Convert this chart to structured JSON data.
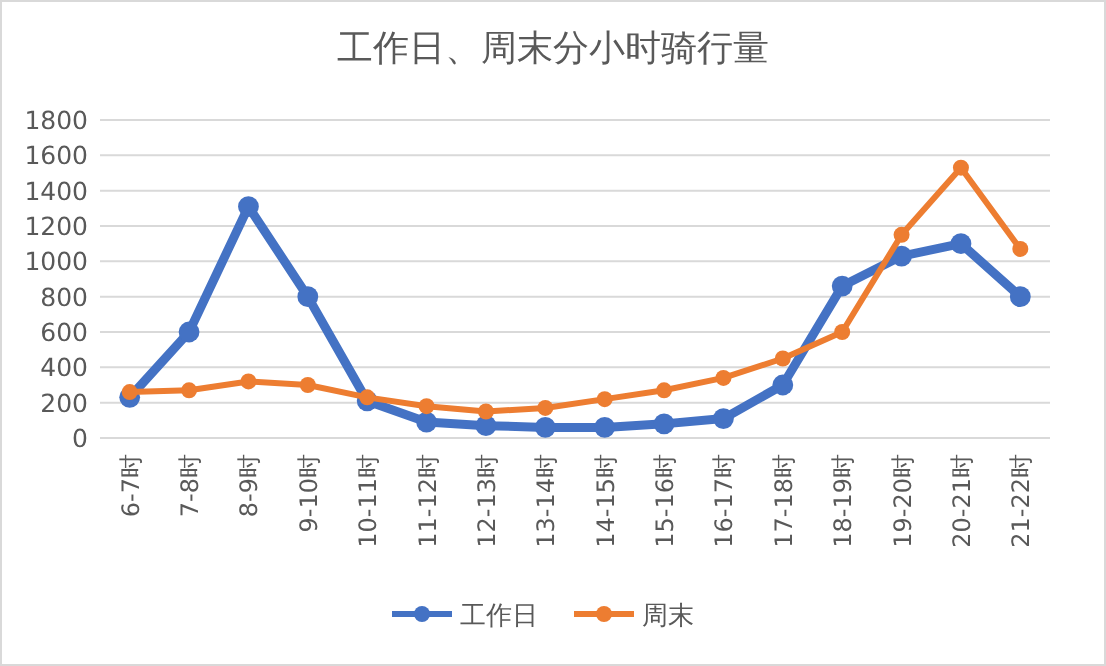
{
  "chart_data": {
    "type": "line",
    "title": "工作日、周末分小时骑行量",
    "categories": [
      "6-7时",
      "7-8时",
      "8-9时",
      "9-10时",
      "10-11时",
      "11-12时",
      "12-13时",
      "13-14时",
      "14-15时",
      "15-16时",
      "16-17时",
      "17-18时",
      "18-19时",
      "19-20时",
      "20-21时",
      "21-22时"
    ],
    "series": [
      {
        "name": "工作日",
        "color": "#4472c4",
        "values": [
          230,
          600,
          1310,
          800,
          210,
          90,
          70,
          60,
          60,
          80,
          110,
          300,
          860,
          1030,
          1100,
          800
        ]
      },
      {
        "name": "周末",
        "color": "#ed7d31",
        "values": [
          260,
          270,
          320,
          300,
          230,
          180,
          150,
          170,
          220,
          270,
          340,
          450,
          600,
          1150,
          1530,
          1070
        ]
      }
    ],
    "ylim": [
      0,
      1800
    ],
    "yticks": [
      0,
      200,
      400,
      600,
      800,
      1000,
      1200,
      1400,
      1600,
      1800
    ],
    "grid": "y",
    "legend": "bottom",
    "marker": "circle",
    "line_style": "solid"
  }
}
